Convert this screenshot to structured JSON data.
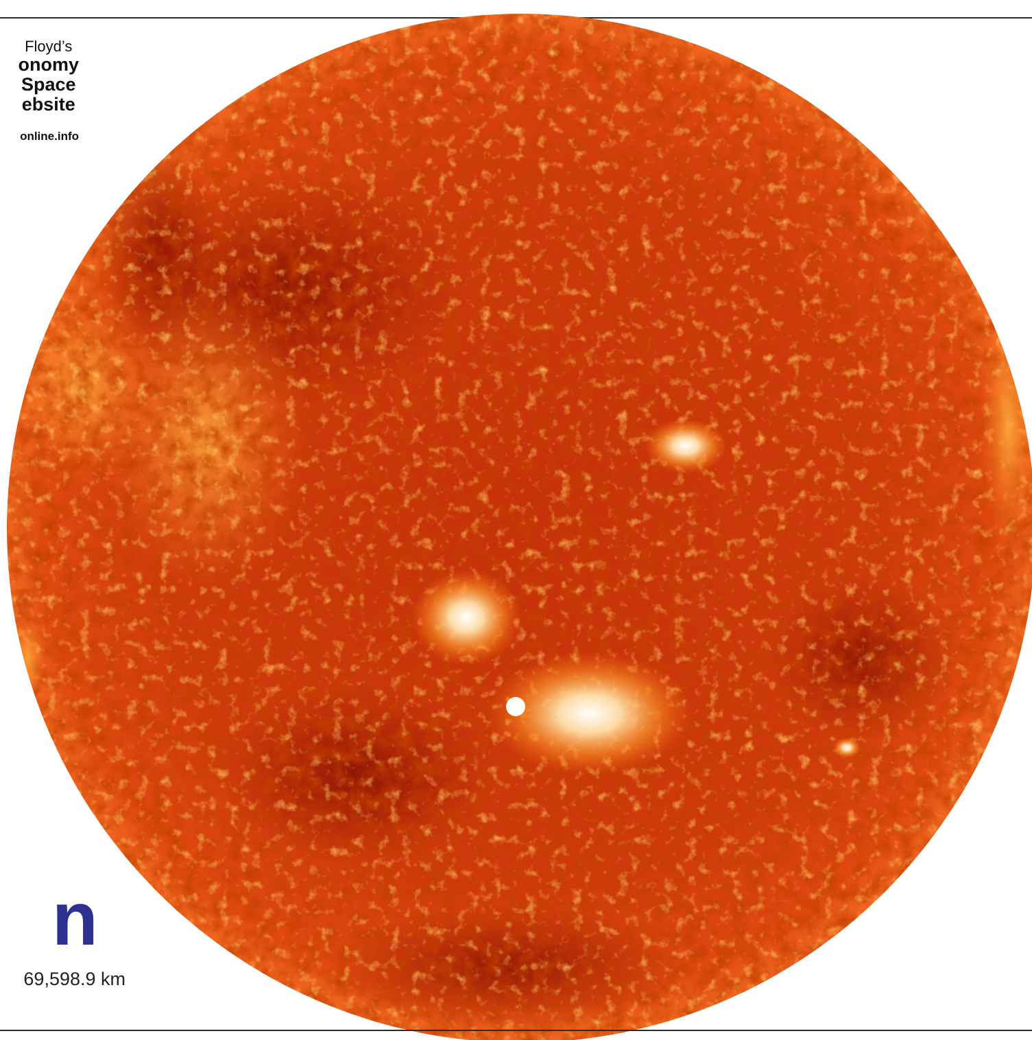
{
  "credit": {
    "author": "Floyd’s",
    "site_name_lines": [
      "onomy",
      "Space",
      "ebsite"
    ],
    "site_url": "online.info"
  },
  "main": {
    "title": "n",
    "radius_text": "69,598.9 km"
  },
  "colors": {
    "title": "#2e3192",
    "rule": "#2b2b2b",
    "sun_dark": "#8c0f00",
    "sun_mid": "#d63a08",
    "sun_bright": "#ffb040",
    "sun_white": "#fff7e8"
  },
  "image": {
    "subject": "sun-disk"
  }
}
